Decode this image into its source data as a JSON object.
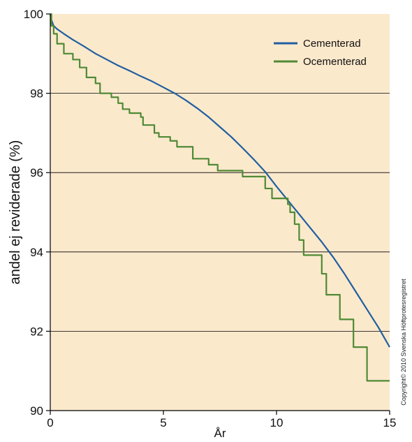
{
  "chart_data": {
    "type": "line",
    "title": "",
    "xlabel": "År",
    "ylabel": "andel ej reviderade (%)",
    "xlim": [
      0,
      15
    ],
    "ylim": [
      90,
      100
    ],
    "x_ticks": [
      0,
      5,
      10,
      15
    ],
    "y_ticks": [
      90,
      92,
      94,
      96,
      98,
      100
    ],
    "grid": "horizontal",
    "legend_position": "top-right",
    "background_color": "#fbe9cc",
    "series": [
      {
        "name": "Cementerad",
        "color": "#1f5fa0",
        "step": false,
        "points": [
          [
            0,
            100
          ],
          [
            0.05,
            99.85
          ],
          [
            0.15,
            99.7
          ],
          [
            0.3,
            99.62
          ],
          [
            0.6,
            99.5
          ],
          [
            1,
            99.35
          ],
          [
            1.5,
            99.18
          ],
          [
            2,
            99.0
          ],
          [
            2.5,
            98.85
          ],
          [
            3,
            98.7
          ],
          [
            3.5,
            98.57
          ],
          [
            4,
            98.43
          ],
          [
            4.5,
            98.3
          ],
          [
            5,
            98.15
          ],
          [
            5.5,
            98.0
          ],
          [
            6,
            97.82
          ],
          [
            6.5,
            97.62
          ],
          [
            7,
            97.4
          ],
          [
            7.5,
            97.15
          ],
          [
            8,
            96.9
          ],
          [
            8.5,
            96.62
          ],
          [
            9,
            96.33
          ],
          [
            9.5,
            96.02
          ],
          [
            10,
            95.65
          ],
          [
            10.5,
            95.3
          ],
          [
            11,
            94.95
          ],
          [
            11.5,
            94.6
          ],
          [
            12,
            94.25
          ],
          [
            12.5,
            93.87
          ],
          [
            13,
            93.45
          ],
          [
            13.5,
            93.0
          ],
          [
            14,
            92.55
          ],
          [
            14.5,
            92.1
          ],
          [
            15,
            91.6
          ]
        ]
      },
      {
        "name": "Ocementerad",
        "color": "#4f8a35",
        "step": true,
        "points": [
          [
            0,
            100
          ],
          [
            0.05,
            99.7
          ],
          [
            0.15,
            99.5
          ],
          [
            0.3,
            99.25
          ],
          [
            0.6,
            99.0
          ],
          [
            1,
            98.85
          ],
          [
            1.3,
            98.65
          ],
          [
            1.6,
            98.4
          ],
          [
            2,
            98.25
          ],
          [
            2.2,
            98.0
          ],
          [
            2.7,
            97.9
          ],
          [
            3,
            97.75
          ],
          [
            3.2,
            97.6
          ],
          [
            3.5,
            97.5
          ],
          [
            4,
            97.4
          ],
          [
            4.1,
            97.2
          ],
          [
            4.6,
            97.0
          ],
          [
            4.8,
            96.9
          ],
          [
            5.3,
            96.8
          ],
          [
            5.6,
            96.65
          ],
          [
            6.3,
            96.35
          ],
          [
            7,
            96.2
          ],
          [
            7.4,
            96.05
          ],
          [
            8.5,
            95.9
          ],
          [
            9.5,
            95.6
          ],
          [
            9.8,
            95.35
          ],
          [
            10.5,
            95.2
          ],
          [
            10.6,
            95.0
          ],
          [
            10.8,
            94.7
          ],
          [
            11,
            94.3
          ],
          [
            11.2,
            93.92
          ],
          [
            12,
            93.45
          ],
          [
            12.2,
            92.92
          ],
          [
            12.8,
            92.3
          ],
          [
            13.4,
            91.6
          ],
          [
            14,
            90.75
          ],
          [
            15,
            90.75
          ]
        ]
      }
    ]
  },
  "copyright": "Copyright© 2010 Svenska Höftprotesregistret"
}
